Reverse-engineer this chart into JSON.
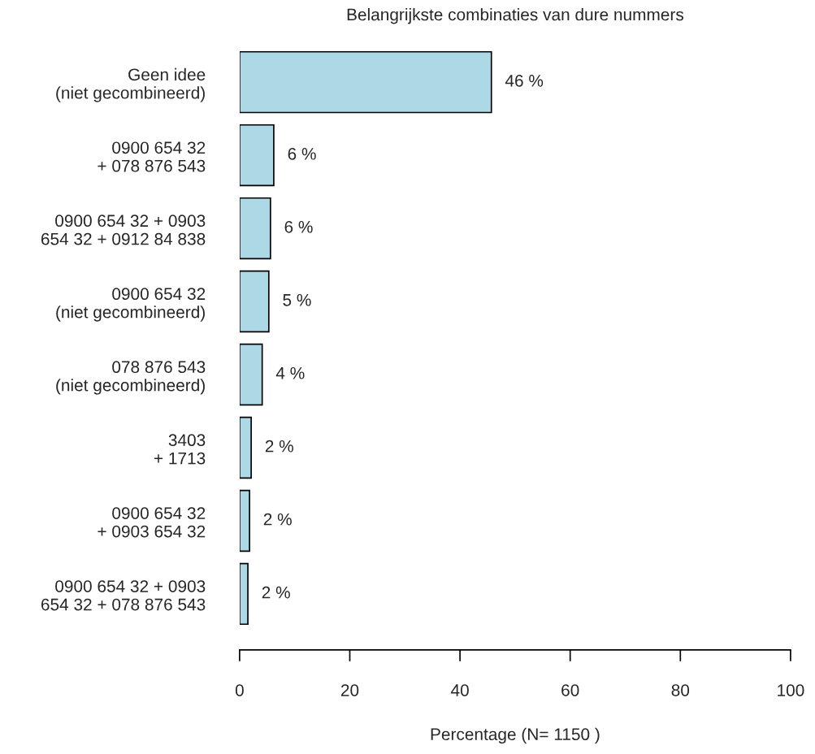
{
  "chart_data": {
    "type": "bar",
    "orientation": "horizontal",
    "title": "Belangrijkste combinaties van dure nummers",
    "xlabel": "Percentage (N= 1150 )",
    "categories": [
      "Geen idee\n(niet gecombineerd)",
      "0900 654 32\n+ 078 876 543",
      "0900 654 32 + 0903\n654 32 + 0912 84 838",
      "0900 654 32\n(niet gecombineerd)",
      "078 876 543\n(niet gecombineerd)",
      "3403\n+ 1713",
      "0900 654 32\n+ 0903 654 32",
      "0900 654 32 + 0903\n654 32 + 078 876 543"
    ],
    "values": [
      45.7,
      6.2,
      5.6,
      5.3,
      4.1,
      2.1,
      1.8,
      1.5
    ],
    "value_labels": [
      "46 %",
      "6 %",
      "6 %",
      "5 %",
      "4 %",
      "2 %",
      "2 %",
      "2 %"
    ],
    "color": "#add8e6",
    "xlim": [
      0,
      100
    ],
    "xticks": [
      0,
      20,
      40,
      60,
      80,
      100
    ],
    "grid": false,
    "legend": false
  }
}
